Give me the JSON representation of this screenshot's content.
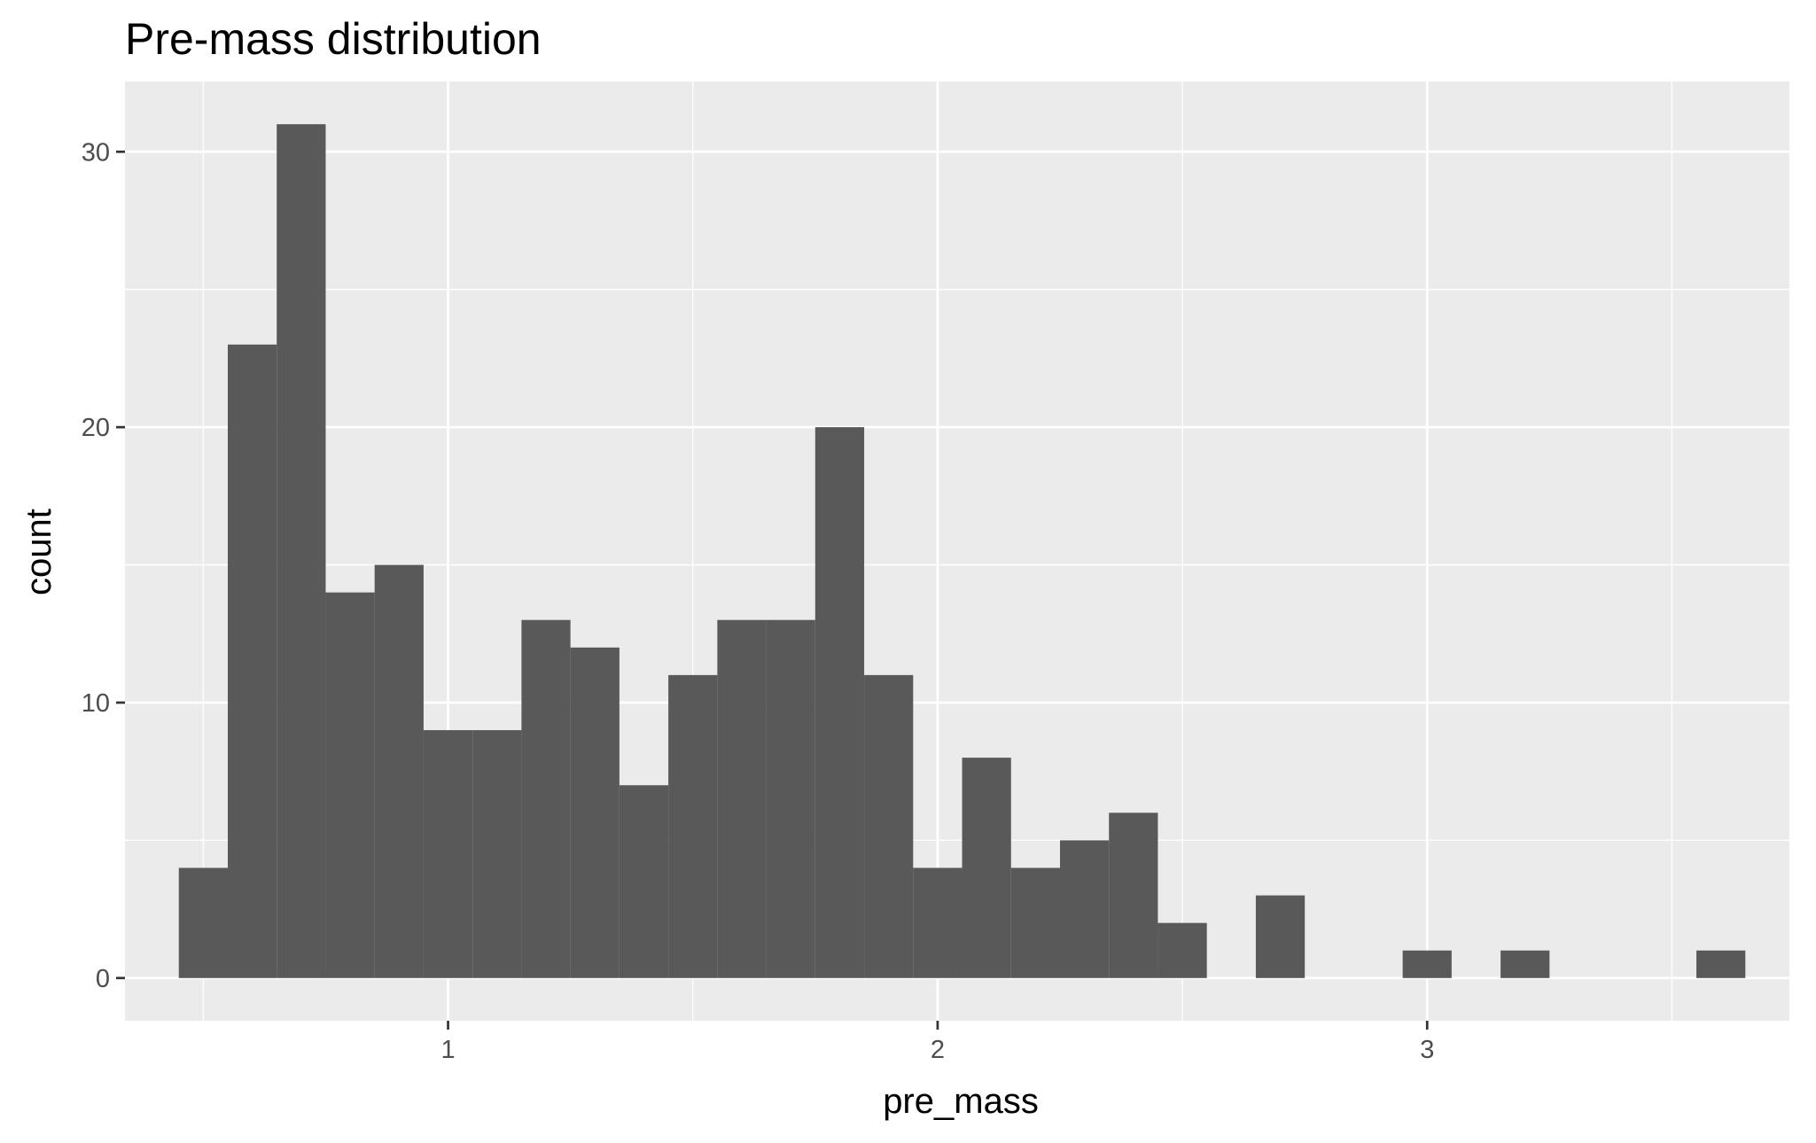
{
  "chart_data": {
    "type": "bar",
    "title": "Pre-mass distribution",
    "xlabel": "pre_mass",
    "ylabel": "count",
    "bin_width": 0.1,
    "bin_centers": [
      0.5,
      0.6,
      0.7,
      0.8,
      0.9,
      1.0,
      1.1,
      1.2,
      1.3,
      1.4,
      1.5,
      1.6,
      1.7,
      1.8,
      1.9,
      2.0,
      2.1,
      2.2,
      2.3,
      2.4,
      2.5,
      2.6,
      2.7,
      2.8,
      2.9,
      3.0,
      3.1,
      3.2,
      3.3,
      3.4,
      3.5,
      3.6
    ],
    "values": [
      4,
      23,
      31,
      14,
      15,
      9,
      9,
      13,
      12,
      7,
      11,
      13,
      13,
      20,
      11,
      4,
      8,
      4,
      5,
      6,
      2,
      0,
      3,
      0,
      0,
      1,
      0,
      1,
      0,
      0,
      0,
      1
    ],
    "xlim": [
      0.34,
      3.74
    ],
    "ylim": [
      -1.55,
      32.55
    ],
    "x_ticks": [
      1,
      2,
      3
    ],
    "x_tick_labels": [
      "1",
      "2",
      "3"
    ],
    "x_minor_ticks": [
      0.5,
      1.5,
      2.5,
      3.5
    ],
    "y_ticks": [
      0,
      10,
      20,
      30
    ],
    "y_tick_labels": [
      "0",
      "10",
      "20",
      "30"
    ],
    "y_minor_ticks": [
      5,
      15,
      25
    ],
    "grid": true,
    "colors": {
      "panel_background": "#ebebeb",
      "grid_line": "#ffffff",
      "bar_fill": "#595959",
      "tick_mark": "#333333"
    }
  }
}
